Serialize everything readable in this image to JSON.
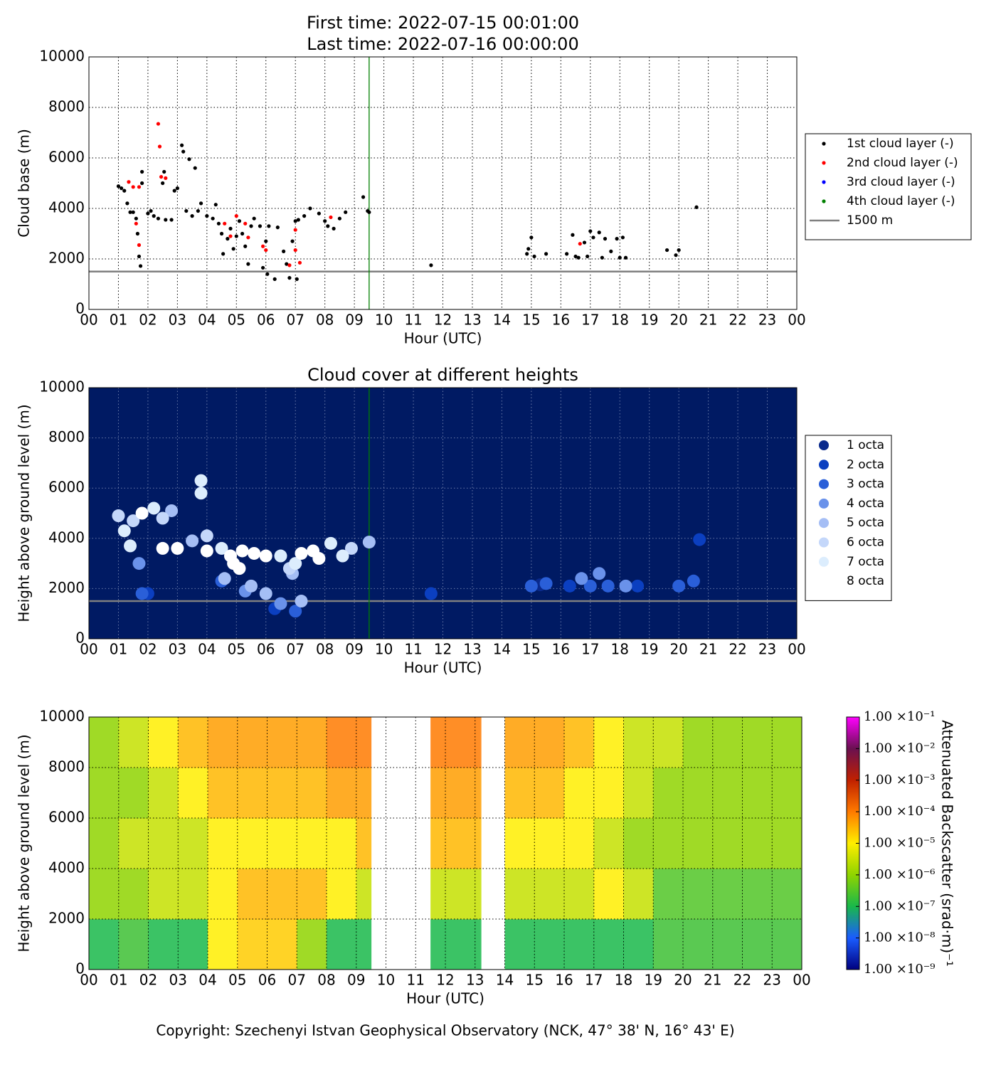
{
  "chart_data": [
    {
      "type": "scatter",
      "title_lines": [
        "First time: 2022-07-15 00:01:00",
        "Last time: 2022-07-16 00:00:00"
      ],
      "xlabel": "Hour (UTC)",
      "ylabel": "Cloud base (m)",
      "xlim": [
        0,
        24
      ],
      "xticks": [
        {
          "value": 0,
          "label": "00"
        },
        {
          "value": 1,
          "label": "01"
        },
        {
          "value": 2,
          "label": "02"
        },
        {
          "value": 3,
          "label": "03"
        },
        {
          "value": 4,
          "label": "04"
        },
        {
          "value": 5,
          "label": "05"
        },
        {
          "value": 6,
          "label": "06"
        },
        {
          "value": 7,
          "label": "07"
        },
        {
          "value": 8,
          "label": "08"
        },
        {
          "value": 9,
          "label": "09"
        },
        10,
        11,
        12,
        13,
        14,
        15,
        16,
        17,
        18,
        19,
        20,
        21,
        22,
        23,
        {
          "value": 24,
          "label": "00"
        }
      ],
      "ylim": [
        0,
        10000
      ],
      "yticks": [
        0,
        2000,
        4000,
        6000,
        8000,
        10000
      ],
      "grid": true,
      "marker_size": 2.6,
      "vline": {
        "x": 9.5,
        "color": "#008000"
      },
      "reference_line": {
        "name": "1500 m",
        "value": 1500,
        "color": "#808080"
      },
      "series": [
        {
          "name": "1st cloud layer (-)",
          "color": "#000000",
          "x": [
            1.0,
            1.1,
            1.2,
            1.3,
            1.4,
            1.5,
            1.6,
            1.65,
            1.7,
            1.75,
            1.8,
            1.8,
            2.0,
            2.1,
            2.2,
            2.35,
            2.5,
            2.55,
            2.6,
            2.8,
            2.9,
            3.0,
            3.15,
            3.2,
            3.3,
            3.4,
            3.5,
            3.6,
            3.7,
            3.8,
            4.0,
            4.2,
            4.3,
            4.4,
            4.5,
            4.55,
            4.7,
            4.8,
            4.9,
            5.0,
            5.1,
            5.2,
            5.3,
            5.4,
            5.5,
            5.6,
            5.8,
            5.9,
            6.0,
            6.05,
            6.1,
            6.3,
            6.4,
            6.6,
            6.7,
            6.8,
            6.9,
            7.0,
            7.05,
            7.1,
            7.3,
            7.5,
            7.8,
            8.0,
            8.1,
            8.3,
            8.5,
            8.7,
            9.3,
            9.45,
            9.5,
            11.6,
            14.85,
            14.9,
            15.0,
            15.1,
            15.5,
            16.2,
            16.4,
            16.5,
            16.6,
            16.8,
            16.9,
            17.0,
            17.1,
            17.3,
            17.4,
            17.5,
            17.7,
            17.9,
            18.0,
            18.1,
            18.2,
            19.6,
            19.9,
            20.0,
            20.6
          ],
          "values": [
            4880,
            4800,
            4700,
            4200,
            3850,
            3850,
            3600,
            3000,
            2100,
            1720,
            5000,
            5450,
            3800,
            3900,
            3700,
            3600,
            5000,
            5450,
            3550,
            3550,
            4700,
            4800,
            6500,
            6250,
            3900,
            5950,
            3700,
            5600,
            3900,
            4200,
            3700,
            3600,
            4150,
            3400,
            3000,
            2200,
            2800,
            3200,
            2400,
            2900,
            3500,
            3000,
            2500,
            1800,
            3300,
            3600,
            3300,
            1650,
            2700,
            1400,
            3300,
            1200,
            3250,
            2300,
            1800,
            1250,
            2700,
            3500,
            1200,
            3550,
            3700,
            4000,
            3800,
            3500,
            3300,
            3200,
            3600,
            3850,
            4450,
            3900,
            3850,
            1750,
            2200,
            2400,
            2850,
            2100,
            2200,
            2200,
            2950,
            2100,
            2050,
            2650,
            2100,
            3100,
            2850,
            3050,
            2050,
            2800,
            2300,
            2800,
            2050,
            2850,
            2050,
            2350,
            2150,
            2350,
            4050
          ]
        },
        {
          "name": "2nd cloud layer (-)",
          "color": "#ff0000",
          "x": [
            1.35,
            1.5,
            1.7,
            1.6,
            1.7,
            2.35,
            2.4,
            2.45,
            2.6,
            4.6,
            4.8,
            5.0,
            5.3,
            5.4,
            5.9,
            6.0,
            6.8,
            7.0,
            7.0,
            7.15,
            8.2,
            16.65
          ],
          "values": [
            5050,
            4850,
            4850,
            3400,
            2550,
            7350,
            6450,
            5250,
            5200,
            3400,
            2900,
            3700,
            3400,
            2850,
            2500,
            2350,
            1750,
            3150,
            2350,
            1850,
            3650,
            2600
          ]
        },
        {
          "name": "3rd cloud layer (-)",
          "color": "#0000ff",
          "x": [],
          "values": []
        },
        {
          "name": "4th cloud layer (-)",
          "color": "#008000",
          "x": [],
          "values": []
        }
      ]
    },
    {
      "type": "scatter",
      "title": "Cloud cover at different heights",
      "xlabel": "Hour (UTC)",
      "ylabel": "Height above ground level (m)",
      "xlim": [
        0,
        24
      ],
      "xticks": [
        {
          "value": 0,
          "label": "00"
        },
        {
          "value": 1,
          "label": "01"
        },
        {
          "value": 2,
          "label": "02"
        },
        {
          "value": 3,
          "label": "03"
        },
        {
          "value": 4,
          "label": "04"
        },
        {
          "value": 5,
          "label": "05"
        },
        {
          "value": 6,
          "label": "06"
        },
        {
          "value": 7,
          "label": "07"
        },
        {
          "value": 8,
          "label": "08"
        },
        {
          "value": 9,
          "label": "09"
        },
        10,
        11,
        12,
        13,
        14,
        15,
        16,
        17,
        18,
        19,
        20,
        21,
        22,
        23,
        {
          "value": 24,
          "label": "00"
        }
      ],
      "ylim": [
        0,
        10000
      ],
      "yticks": [
        0,
        2000,
        4000,
        6000,
        8000,
        10000
      ],
      "grid": true,
      "background": "#001a63",
      "marker_size": 9,
      "vline": {
        "x": 9.5,
        "color": "#008000"
      },
      "reference_line": {
        "value": 1500,
        "color": "#808080"
      },
      "series": [
        {
          "name": "1 octa",
          "color": "#0a2a8c",
          "x": [
            15.3
          ],
          "values": [
            2150
          ]
        },
        {
          "name": "2 octa",
          "color": "#0b3fc0",
          "x": [
            2.0,
            6.3,
            11.6,
            16.3,
            18.6,
            20.7
          ],
          "values": [
            1800,
            1200,
            1800,
            2100,
            2100,
            3950
          ]
        },
        {
          "name": "3 octa",
          "color": "#2a5fd8",
          "x": [
            1.8,
            4.5,
            7.0,
            15.0,
            15.5,
            17.0,
            17.6,
            20.0,
            20.5
          ],
          "values": [
            1800,
            2300,
            1100,
            2100,
            2200,
            2100,
            2100,
            2100,
            2300
          ]
        },
        {
          "name": "4 octa",
          "color": "#6a92ea",
          "x": [
            1.7,
            5.3,
            6.5,
            16.7,
            17.3,
            18.2
          ],
          "values": [
            3000,
            1900,
            1400,
            2400,
            2600,
            2100
          ]
        },
        {
          "name": "5 octa",
          "color": "#a5bef5",
          "x": [
            2.8,
            3.5,
            4.6,
            5.5,
            6.0,
            6.9,
            9.5,
            7.2
          ],
          "values": [
            5100,
            3900,
            2400,
            2100,
            1800,
            2600,
            3850,
            1500
          ]
        },
        {
          "name": "6 octa",
          "color": "#c4d7fa",
          "x": [
            1.0,
            1.5,
            2.5,
            4.0,
            6.8,
            8.9
          ],
          "values": [
            4900,
            4700,
            4800,
            4100,
            2800,
            3600
          ]
        },
        {
          "name": "7 octa",
          "color": "#dcedfd",
          "x": [
            1.2,
            1.4,
            2.2,
            3.8,
            3.8,
            4.5,
            6.5,
            7.0,
            8.2,
            8.6
          ],
          "values": [
            4300,
            3700,
            5200,
            5800,
            6300,
            3600,
            3300,
            3000,
            3800,
            3300
          ]
        },
        {
          "name": "8 octa",
          "color": "#ffffff",
          "x": [
            1.8,
            2.5,
            3.0,
            4.0,
            4.8,
            5.2,
            5.6,
            6.0,
            7.2,
            7.6,
            4.9,
            5.1,
            7.8
          ],
          "values": [
            5000,
            3600,
            3600,
            3500,
            3300,
            3500,
            3400,
            3300,
            3400,
            3500,
            3000,
            2800,
            3200
          ]
        }
      ]
    },
    {
      "type": "heatmap",
      "xlabel": "Hour (UTC)",
      "ylabel": "Height above ground level (m)",
      "xlim": [
        0,
        24
      ],
      "xticks": [
        {
          "value": 0,
          "label": "00"
        },
        {
          "value": 1,
          "label": "01"
        },
        {
          "value": 2,
          "label": "02"
        },
        {
          "value": 3,
          "label": "03"
        },
        {
          "value": 4,
          "label": "04"
        },
        {
          "value": 5,
          "label": "05"
        },
        {
          "value": 6,
          "label": "06"
        },
        {
          "value": 7,
          "label": "07"
        },
        {
          "value": 8,
          "label": "08"
        },
        {
          "value": 9,
          "label": "09"
        },
        10,
        11,
        12,
        13,
        14,
        15,
        16,
        17,
        18,
        19,
        20,
        21,
        22,
        23,
        {
          "value": 24,
          "label": "00"
        }
      ],
      "ylim": [
        0,
        10000
      ],
      "yticks": [
        0,
        2000,
        4000,
        6000,
        8000,
        10000
      ],
      "grid": true,
      "x_bins": [
        0,
        1,
        2,
        3,
        4,
        5,
        6,
        7,
        8,
        9,
        9.5,
        11.5,
        12,
        13,
        13.2,
        14,
        15,
        16,
        17,
        18,
        19,
        20,
        21,
        22,
        23,
        24
      ],
      "y_bins": [
        0,
        2000,
        4000,
        6000,
        8000,
        10000
      ],
      "values": [
        [
          1e-07,
          2e-07,
          1e-07,
          1e-07,
          1e-05,
          2e-05,
          2e-05,
          1e-06,
          1e-07,
          1e-07,
          null,
          1e-07,
          1e-07,
          1e-07,
          null,
          1e-07,
          1e-07,
          1e-07,
          1e-07,
          1e-07,
          2e-07,
          2e-07,
          2e-07,
          2e-07,
          2e-07
        ],
        [
          1e-06,
          1e-06,
          3e-06,
          3e-06,
          1e-05,
          3e-05,
          3e-05,
          3e-05,
          1e-05,
          3e-06,
          null,
          3e-06,
          3e-06,
          3e-06,
          null,
          3e-06,
          3e-06,
          3e-06,
          1e-05,
          3e-06,
          3e-07,
          3e-07,
          3e-07,
          3e-07,
          3e-07
        ],
        [
          1e-06,
          3e-06,
          3e-06,
          3e-06,
          1e-05,
          1e-05,
          1e-05,
          1e-05,
          1e-05,
          3e-05,
          null,
          3e-05,
          3e-05,
          3e-05,
          null,
          1e-05,
          1e-05,
          1e-05,
          3e-06,
          1e-06,
          1e-06,
          1e-06,
          1e-06,
          1e-06,
          1e-06
        ],
        [
          1e-06,
          1e-06,
          3e-06,
          1e-05,
          3e-05,
          3e-05,
          3e-05,
          3e-05,
          5e-05,
          5e-05,
          null,
          5e-05,
          5e-05,
          5e-05,
          null,
          3e-05,
          3e-05,
          1e-05,
          1e-05,
          3e-06,
          1e-06,
          1e-06,
          1e-06,
          1e-06,
          1e-06
        ],
        [
          1e-06,
          3e-06,
          1e-05,
          3e-05,
          5e-05,
          5e-05,
          5e-05,
          5e-05,
          0.0001,
          0.0001,
          null,
          0.0001,
          0.0001,
          0.0001,
          null,
          5e-05,
          5e-05,
          3e-05,
          1e-05,
          3e-06,
          3e-06,
          1e-06,
          1e-06,
          1e-06,
          1e-06
        ]
      ],
      "colorbar": {
        "label": "Attenuated Backscatter (srad·m)⁻¹",
        "log": true,
        "lim": [
          1e-09,
          0.1
        ],
        "colors": [
          "#00007f",
          "#1a5cff",
          "#19b84a",
          "#8fd400",
          "#ffee00",
          "#ff7a00",
          "#c02000",
          "#6a1050",
          "#ff00ff"
        ],
        "ticks": [
          {
            "value": 0.1,
            "label": "1.00 ×10⁻¹"
          },
          {
            "value": 0.01,
            "label": "1.00 ×10⁻²"
          },
          {
            "value": 0.001,
            "label": "1.00 ×10⁻³"
          },
          {
            "value": 0.0001,
            "label": "1.00 ×10⁻⁴"
          },
          {
            "value": 1e-05,
            "label": "1.00 ×10⁻⁵"
          },
          {
            "value": 1e-06,
            "label": "1.00 ×10⁻⁶"
          },
          {
            "value": 1e-07,
            "label": "1.00 ×10⁻⁷"
          },
          {
            "value": 1e-08,
            "label": "1.00 ×10⁻⁸"
          },
          {
            "value": 1e-09,
            "label": "1.00 ×10⁻⁹"
          }
        ]
      }
    }
  ],
  "footer": "Copyright: Szechenyi Istvan Geophysical Observatory (NCK, 47° 38' N, 16° 43' E)"
}
